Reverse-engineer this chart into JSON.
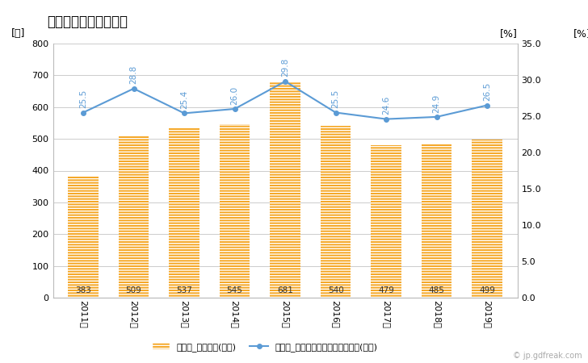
{
  "title": "非木造建築物数の推移",
  "years": [
    "2011年",
    "2012年",
    "2013年",
    "2014年",
    "2015年",
    "2016年",
    "2017年",
    "2018年",
    "2019年"
  ],
  "bar_values": [
    383,
    509,
    537,
    545,
    681,
    540,
    479,
    485,
    499
  ],
  "line_values": [
    25.5,
    28.8,
    25.4,
    26.0,
    29.8,
    25.5,
    24.6,
    24.9,
    26.5
  ],
  "bar_color": "#F5A623",
  "bar_edge_color": "#F5A623",
  "line_color": "#5B9BD5",
  "ylabel_left": "[棟]",
  "ylabel_right": "[%]",
  "ylabel_right2": "[%]",
  "ylim_left": [
    0,
    800
  ],
  "ylim_right": [
    0,
    35.0
  ],
  "yticks_left": [
    0,
    100,
    200,
    300,
    400,
    500,
    600,
    700,
    800
  ],
  "yticks_right": [
    0.0,
    5.0,
    10.0,
    15.0,
    20.0,
    25.0,
    30.0,
    35.0
  ],
  "legend_bar": "非木造_建築物数(左軸)",
  "legend_line": "非木造_全建築物数にしめるシェア(右軸)",
  "background_color": "#ffffff",
  "grid_color": "#cccccc",
  "title_fontsize": 12,
  "label_fontsize": 9,
  "tick_fontsize": 8,
  "annotation_fontsize": 7.5,
  "legend_fontsize": 8,
  "watermark": "© jp.gdfreak.com"
}
